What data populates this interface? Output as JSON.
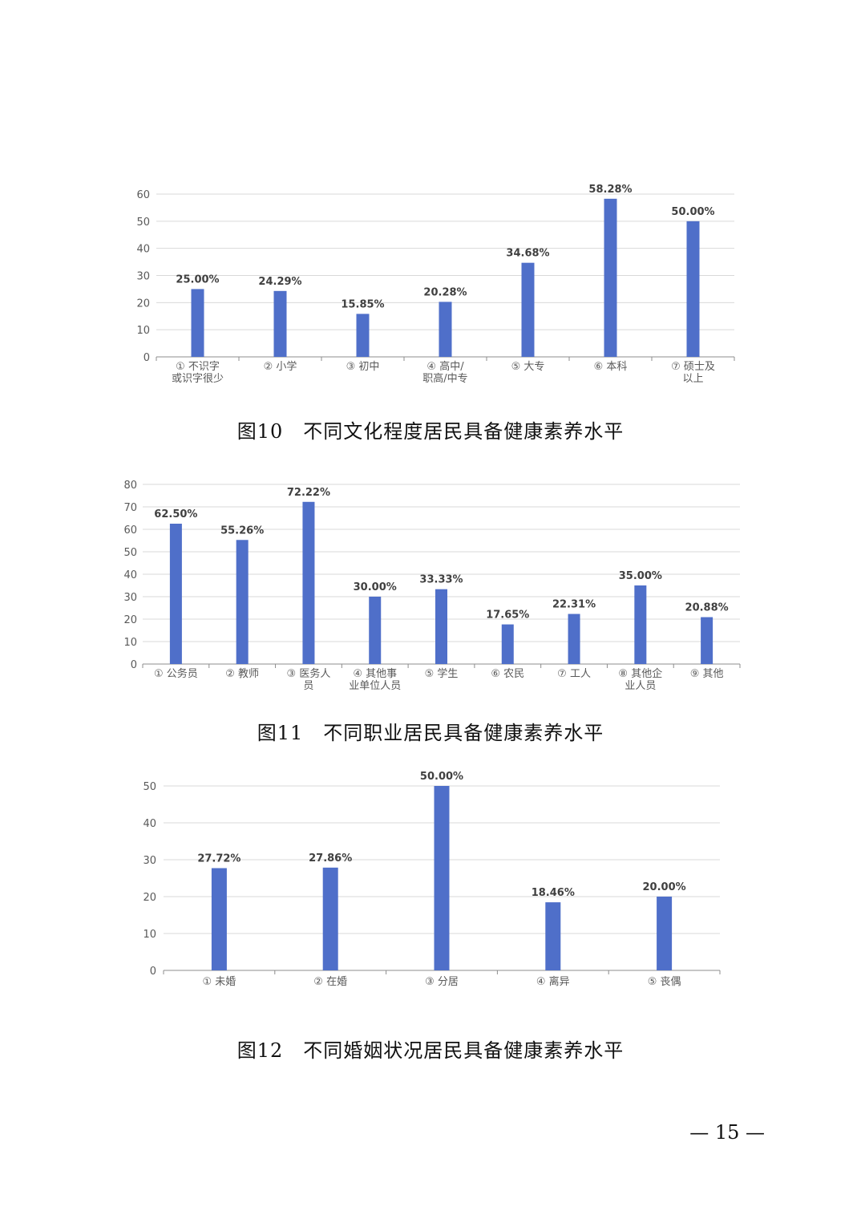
{
  "chart_data": [
    {
      "type": "bar",
      "categories": [
        [
          "① 不识字",
          "或识字很少"
        ],
        [
          "② 小学"
        ],
        [
          "③ 初中"
        ],
        [
          "④ 高中/",
          "职高/中专"
        ],
        [
          "⑤ 大专"
        ],
        [
          "⑥ 本科"
        ],
        [
          "⑦ 硕士及",
          "以上"
        ]
      ],
      "values": [
        25.0,
        24.29,
        15.85,
        20.28,
        34.68,
        58.28,
        50.0
      ],
      "data_labels": [
        "25.00%",
        "24.29%",
        "15.85%",
        "20.28%",
        "34.68%",
        "58.28%",
        "50.00%"
      ],
      "yticks": [
        0,
        10,
        20,
        30,
        40,
        50,
        60
      ],
      "ylim": [
        0,
        60
      ],
      "grid": true,
      "color": "#4f6fc9",
      "title": "",
      "xlabel": "",
      "ylabel": ""
    },
    {
      "type": "bar",
      "categories": [
        [
          "① 公务员"
        ],
        [
          "② 教师"
        ],
        [
          "③ 医务人",
          "员"
        ],
        [
          "④ 其他事",
          "业单位人员"
        ],
        [
          "⑤ 学生"
        ],
        [
          "⑥ 农民"
        ],
        [
          "⑦ 工人"
        ],
        [
          "⑧ 其他企",
          "业人员"
        ],
        [
          "⑨ 其他"
        ]
      ],
      "values": [
        62.5,
        55.26,
        72.22,
        30.0,
        33.33,
        17.65,
        22.31,
        35.0,
        20.88
      ],
      "data_labels": [
        "62.50%",
        "55.26%",
        "72.22%",
        "30.00%",
        "33.33%",
        "17.65%",
        "22.31%",
        "35.00%",
        "20.88%"
      ],
      "yticks": [
        0,
        10,
        20,
        30,
        40,
        50,
        60,
        70,
        80
      ],
      "ylim": [
        0,
        80
      ],
      "grid": true,
      "color": "#4f6fc9",
      "title": "",
      "xlabel": "",
      "ylabel": ""
    },
    {
      "type": "bar",
      "categories": [
        [
          "① 未婚"
        ],
        [
          "② 在婚"
        ],
        [
          "③ 分居"
        ],
        [
          "④ 离异"
        ],
        [
          "⑤ 丧偶"
        ]
      ],
      "values": [
        27.72,
        27.86,
        50.0,
        18.46,
        20.0
      ],
      "data_labels": [
        "27.72%",
        "27.86%",
        "50.00%",
        "18.46%",
        "20.00%"
      ],
      "yticks": [
        0,
        10,
        20,
        30,
        40,
        50
      ],
      "ylim": [
        0,
        50
      ],
      "grid": true,
      "color": "#4f6fc9",
      "title": "",
      "xlabel": "",
      "ylabel": ""
    }
  ],
  "captions": {
    "fig10": "图10　不同文化程度居民具备健康素养水平",
    "fig11": "图11　不同职业居民具备健康素养水平",
    "fig12": "图12　不同婚姻状况居民具备健康素养水平"
  },
  "page_number": "— 15 —"
}
